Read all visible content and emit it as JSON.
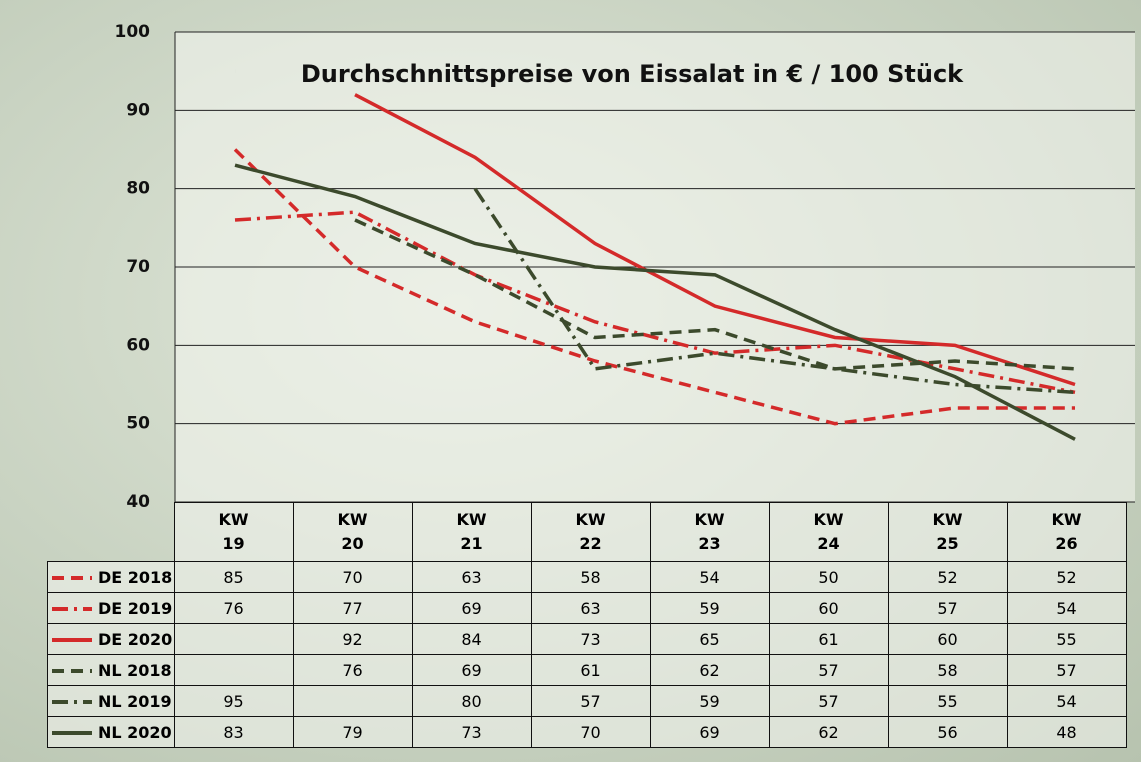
{
  "chart_data": {
    "type": "line",
    "title": "Durchschnittspreise von Eissalat in € / 100 Stück",
    "categories": [
      "KW\n19",
      "KW\n20",
      "KW\n21",
      "KW\n22",
      "KW\n23",
      "KW\n24",
      "KW\n25",
      "KW\n26"
    ],
    "ylim": [
      40,
      100
    ],
    "yticks": [
      40,
      50,
      60,
      70,
      80,
      90,
      100
    ],
    "grid": true,
    "series": [
      {
        "name": "DE 2018",
        "color": "#d42a2a",
        "style": "dashed",
        "values": [
          85,
          70,
          63,
          58,
          54,
          50,
          52,
          52
        ]
      },
      {
        "name": "DE 2019",
        "color": "#d42a2a",
        "style": "dashdot",
        "values": [
          76,
          77,
          69,
          63,
          59,
          60,
          57,
          54
        ]
      },
      {
        "name": "DE 2020",
        "color": "#d42a2a",
        "style": "solid",
        "values": [
          null,
          92,
          84,
          73,
          65,
          61,
          60,
          55
        ]
      },
      {
        "name": "NL 2018",
        "color": "#3c4a2c",
        "style": "dashed",
        "values": [
          null,
          76,
          69,
          61,
          62,
          57,
          58,
          57
        ]
      },
      {
        "name": "NL 2019",
        "color": "#3c4a2c",
        "style": "dashdot",
        "values": [
          95,
          null,
          80,
          57,
          59,
          57,
          55,
          54
        ]
      },
      {
        "name": "NL 2020",
        "color": "#3c4a2c",
        "style": "solid",
        "values": [
          83,
          79,
          73,
          70,
          69,
          62,
          56,
          48
        ]
      }
    ]
  }
}
